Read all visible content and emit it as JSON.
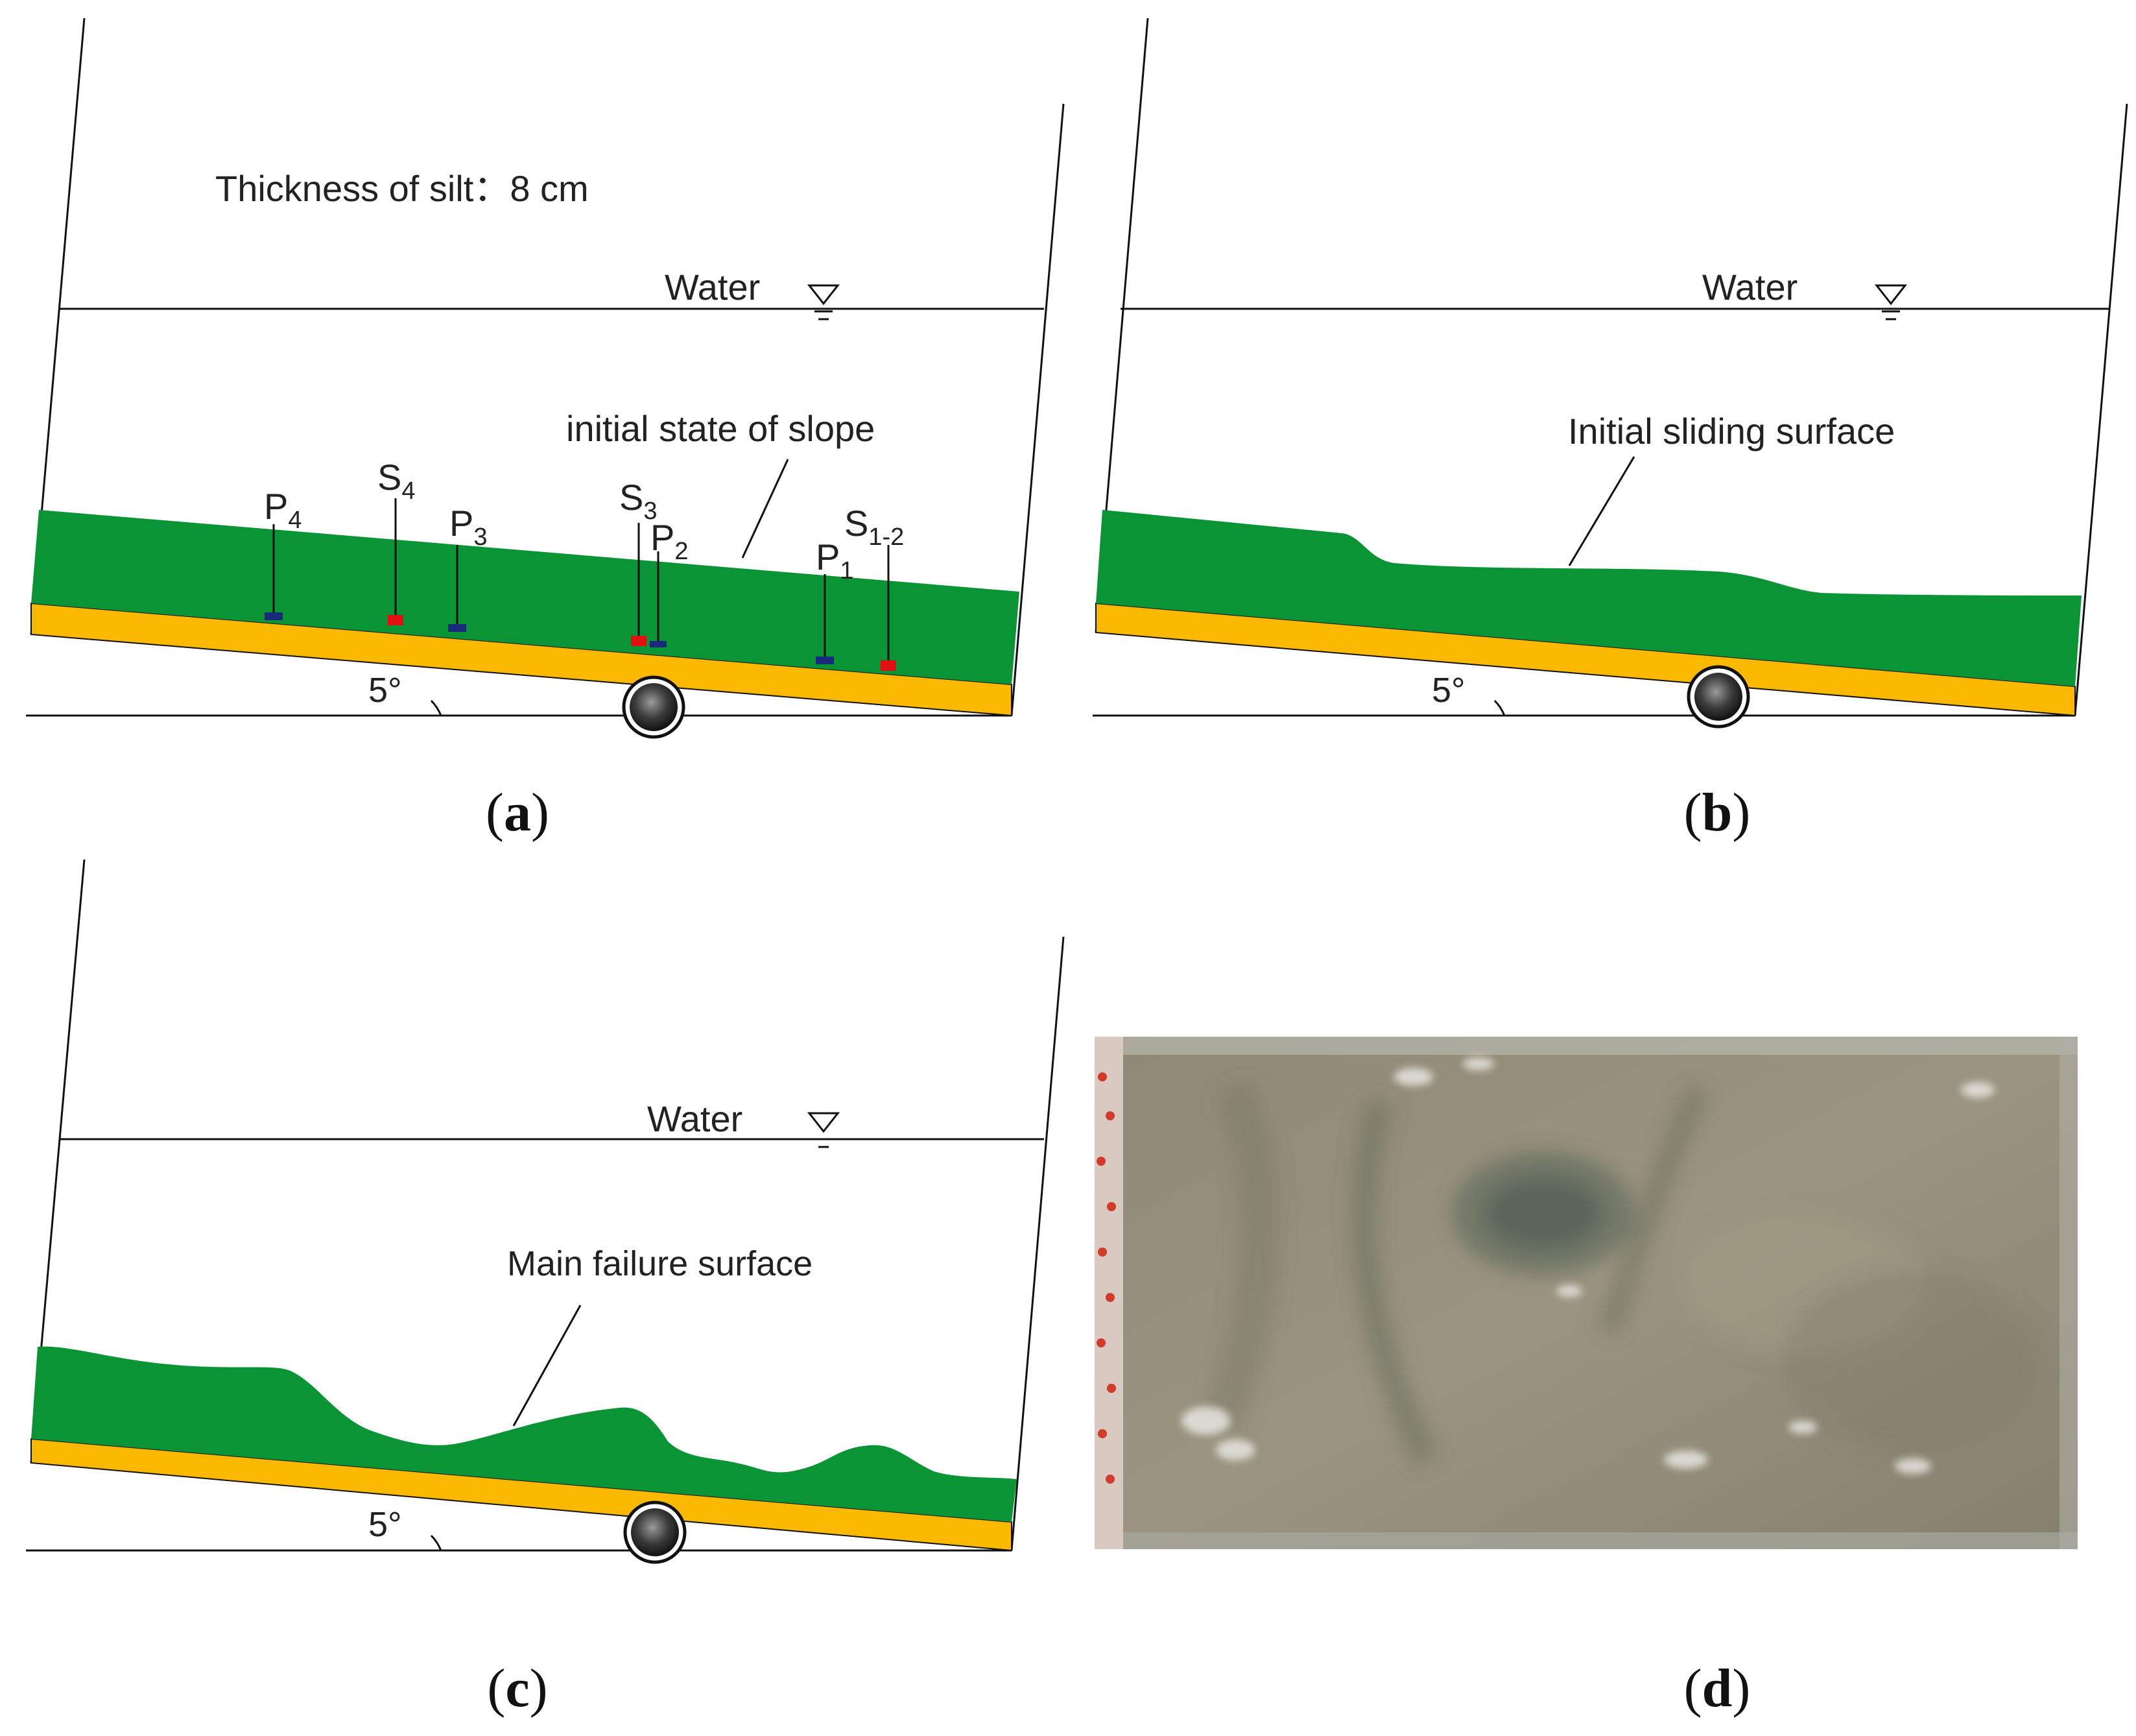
{
  "colors": {
    "silt": "#0a9436",
    "base_plate": "#fbb800",
    "sensor_pore": "#1a2a7a",
    "sensor_stress": "#e01010",
    "water_photo": "#8f8a76"
  },
  "icons": [
    "water-level-triangle-icon",
    "hinge-pivot-icon"
  ],
  "panel_a": {
    "thickness_label": "Thickness of silt：8 cm",
    "water_label": "Water",
    "slope_label": "initial state of slope",
    "angle_label": "5°",
    "caption_open": "(",
    "caption_letter": "a",
    "caption_close": ")",
    "sensors": [
      {
        "base": "P",
        "sub": "4"
      },
      {
        "base": "S",
        "sub": "4"
      },
      {
        "base": "P",
        "sub": "3"
      },
      {
        "base": "S",
        "sub": "3"
      },
      {
        "base": "P",
        "sub": "2"
      },
      {
        "base": "P",
        "sub": "1"
      },
      {
        "base": "S",
        "sub": "1-2"
      }
    ]
  },
  "panel_b": {
    "water_label": "Water",
    "surface_label": "Initial sliding surface",
    "angle_label": "5°",
    "caption_open": "(",
    "caption_letter": "b",
    "caption_close": ")"
  },
  "panel_c": {
    "water_label": "Water",
    "surface_label": "Main failure surface",
    "angle_label": "5°",
    "caption_open": "(",
    "caption_letter": "c",
    "caption_close": ")"
  },
  "panel_d": {
    "caption_open": "(",
    "caption_letter": "d",
    "caption_close": ")"
  }
}
